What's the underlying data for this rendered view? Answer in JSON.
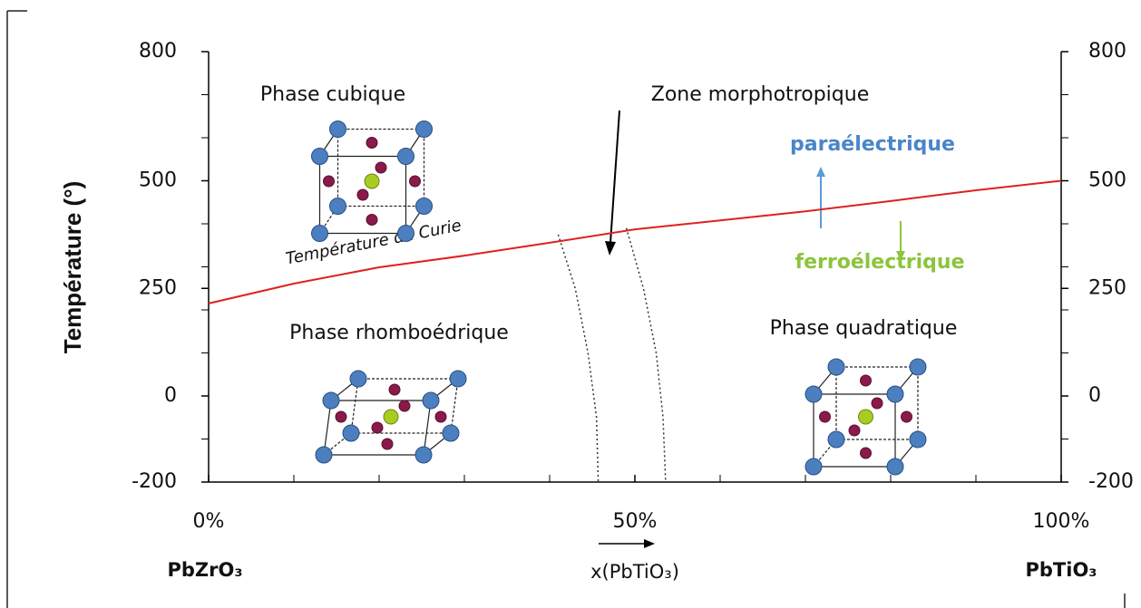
{
  "chart_data": {
    "type": "line",
    "y_label": "Température (°)",
    "ylim": [
      -200,
      800
    ],
    "yticks": [
      800,
      500,
      250,
      0,
      -200
    ],
    "y_minor_ticks": [
      700,
      600,
      400,
      300,
      200,
      100,
      -100
    ],
    "y2lim": [
      -200,
      800
    ],
    "y2ticks": [
      800,
      500,
      250,
      0,
      -200
    ],
    "xlim": [
      0,
      100
    ],
    "xticks": [
      {
        "value": 0,
        "label": "0%"
      },
      {
        "value": 50,
        "label": "50%"
      },
      {
        "value": 100,
        "label": "100%"
      }
    ],
    "x_minor_ticks": [
      10,
      20,
      30,
      40,
      60,
      70,
      80,
      90
    ],
    "x_left_label": "PbZrO₃",
    "x_label": "x(PbTiO₃)",
    "x_right_label": "PbTiO₃",
    "series": [
      {
        "name": "Température de Curie",
        "color": "#e02020",
        "x": [
          0,
          10,
          20,
          30,
          40,
          50,
          60,
          70,
          80,
          90,
          100
        ],
        "values": [
          215,
          261,
          299,
          326,
          356,
          387,
          408,
          429,
          453,
          478,
          500
        ]
      },
      {
        "color": "#333333",
        "dashed": true,
        "x": [
          41,
          43,
          44.5,
          45.5,
          45.7
        ],
        "values": [
          375,
          250,
          100,
          -50,
          -200
        ]
      },
      {
        "color": "#333333",
        "dashed": true,
        "x": [
          49,
          51,
          52.5,
          53.3,
          53.6
        ],
        "values": [
          390,
          250,
          100,
          -50,
          -200
        ]
      }
    ],
    "annotations": {
      "phase_cubic": "Phase cubique",
      "zone": "Zone morphotropique",
      "para": "paraélectrique",
      "ferro": "ferroélectrique",
      "phase_rhombo": "Phase rhomboédrique",
      "phase_quad": "Phase quadratique"
    }
  }
}
